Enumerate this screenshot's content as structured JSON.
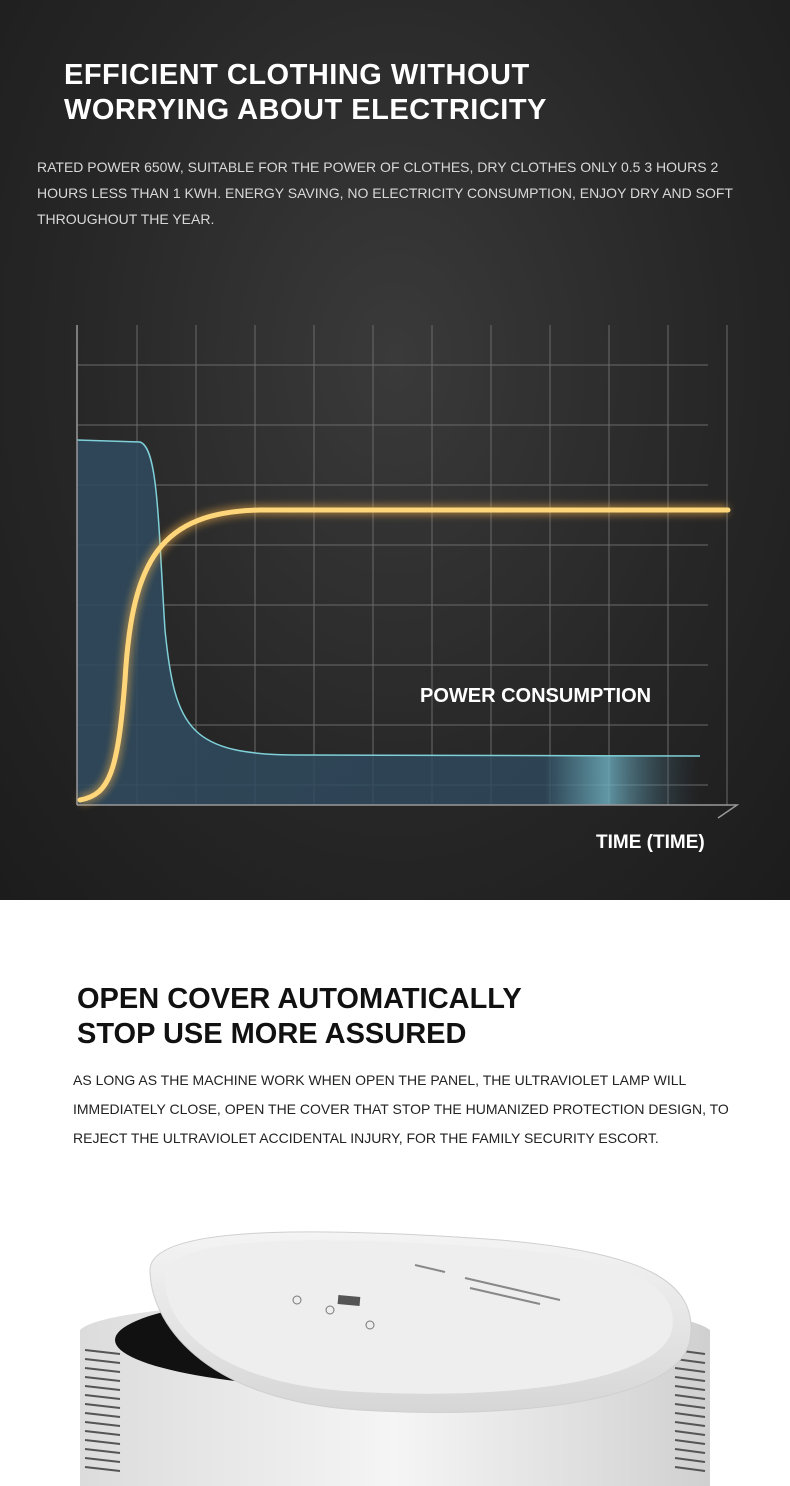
{
  "section1": {
    "title_line1": "EFFICIENT CLOTHING WITHOUT",
    "title_line2": "WORRYING ABOUT ELECTRICITY",
    "body": "RATED POWER 650W, SUITABLE FOR THE POWER OF CLOTHES, DRY CLOTHES ONLY 0.5 3 HOURS 2 HOURS LESS THAN 1 KWH. ENERGY SAVING, NO ELECTRICITY CONSUMPTION, ENJOY DRY AND SOFT THROUGHOUT THE YEAR.",
    "chart": {
      "curve_label": "POWER CONSUMPTION",
      "x_label": "TIME (TIME)",
      "colors": {
        "curve": "#ffd77a",
        "fill": "#2f4a5e",
        "fill_edge": "#7fd0d8",
        "grid": "#6a6a6a"
      }
    }
  },
  "section2": {
    "title_line1": "OPEN COVER AUTOMATICALLY",
    "title_line2": "STOP USE MORE ASSURED",
    "body": "AS LONG AS THE MACHINE WORK WHEN OPEN THE PANEL, THE ULTRAVIOLET LAMP WILL IMMEDIATELY CLOSE, OPEN THE COVER THAT STOP THE HUMANIZED PROTECTION DESIGN, TO REJECT THE ULTRAVIOLET ACCIDENTAL INJURY, FOR THE FAMILY SECURITY ESCORT."
  }
}
